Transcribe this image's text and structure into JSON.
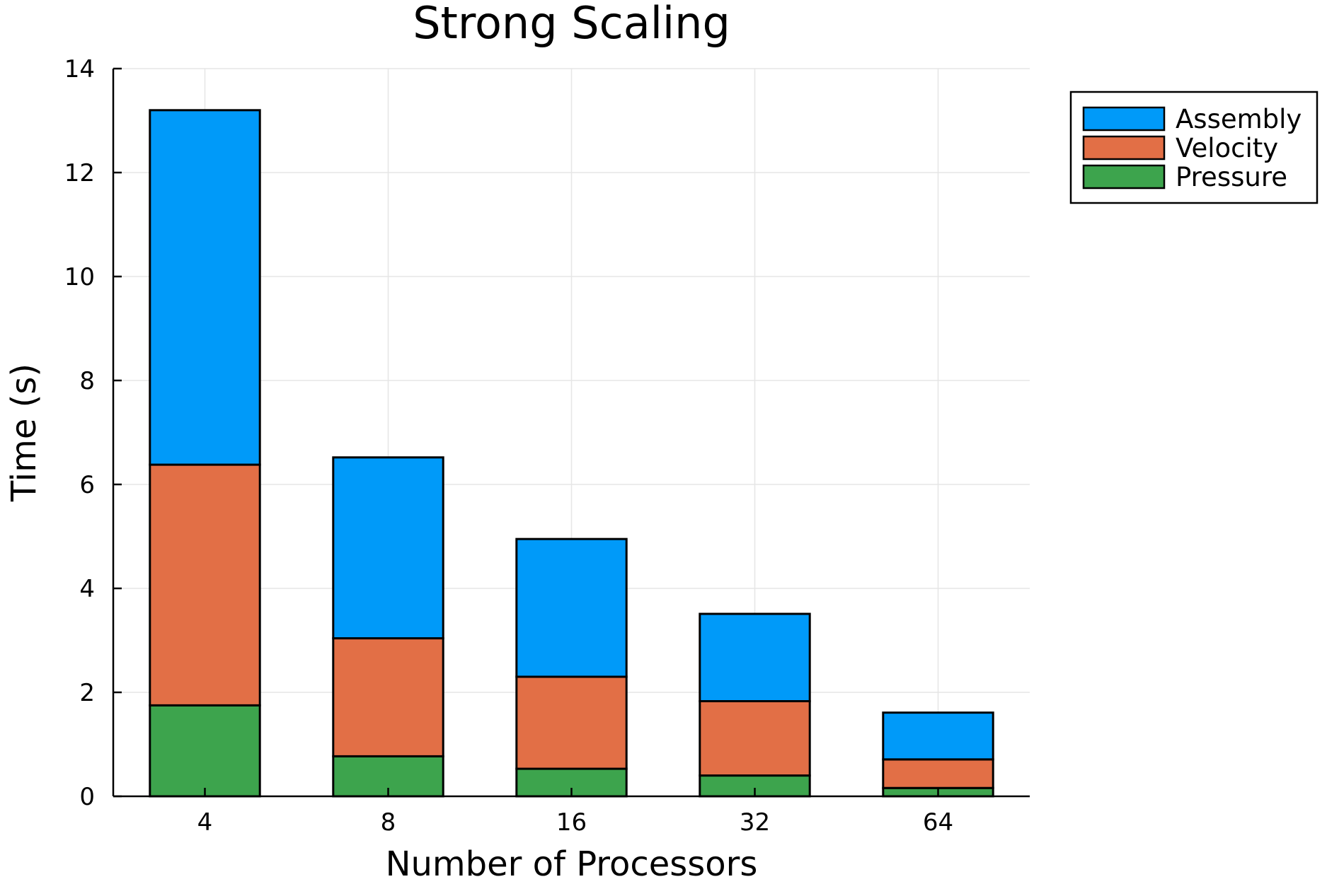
{
  "chart_data": {
    "type": "bar",
    "stacked": true,
    "title": "Strong Scaling",
    "xlabel": "Number of Processors",
    "ylabel": "Time (s)",
    "ylim": [
      0,
      14
    ],
    "yticks": [
      "0",
      "2",
      "4",
      "6",
      "8",
      "10",
      "12",
      "14"
    ],
    "categories": [
      "4",
      "8",
      "16",
      "32",
      "64"
    ],
    "grid": true,
    "legend_position": "top-right",
    "series": [
      {
        "name": "Pressure",
        "color": "#3da44d",
        "values": [
          1.75,
          0.77,
          0.53,
          0.4,
          0.16
        ]
      },
      {
        "name": "Velocity",
        "color": "#e26f46",
        "values": [
          4.63,
          2.27,
          1.77,
          1.43,
          0.55
        ]
      },
      {
        "name": "Assembly",
        "color": "#009af9",
        "values": [
          6.82,
          3.48,
          2.65,
          1.68,
          0.9
        ]
      }
    ],
    "legend_order": [
      "Assembly",
      "Velocity",
      "Pressure"
    ]
  }
}
